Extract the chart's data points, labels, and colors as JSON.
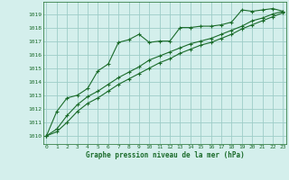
{
  "title": "Graphe pression niveau de la mer (hPa)",
  "bg_color": "#d4efec",
  "grid_color": "#9ecdc7",
  "line_color": "#1a6b2a",
  "x_ticks": [
    0,
    1,
    2,
    3,
    4,
    5,
    6,
    7,
    8,
    9,
    10,
    11,
    12,
    13,
    14,
    15,
    16,
    17,
    18,
    19,
    20,
    21,
    22,
    23
  ],
  "y_ticks": [
    1010,
    1011,
    1012,
    1013,
    1014,
    1015,
    1016,
    1017,
    1018,
    1019
  ],
  "ylim": [
    1009.4,
    1019.9
  ],
  "xlim": [
    -0.3,
    23.3
  ],
  "series1": [
    1010.0,
    1011.8,
    1012.8,
    1013.0,
    1013.5,
    1014.8,
    1015.3,
    1016.9,
    1017.1,
    1017.5,
    1016.9,
    1017.0,
    1017.0,
    1018.0,
    1018.0,
    1018.1,
    1018.1,
    1018.2,
    1018.4,
    1019.3,
    1019.2,
    1019.3,
    1019.4,
    1019.2
  ],
  "series2": [
    1010.0,
    1010.5,
    1011.5,
    1012.3,
    1012.9,
    1013.3,
    1013.8,
    1014.3,
    1014.7,
    1015.1,
    1015.6,
    1015.9,
    1016.2,
    1016.5,
    1016.8,
    1017.0,
    1017.2,
    1017.5,
    1017.8,
    1018.1,
    1018.5,
    1018.7,
    1019.0,
    1019.2
  ],
  "series3": [
    1010.0,
    1010.3,
    1011.0,
    1011.8,
    1012.4,
    1012.8,
    1013.3,
    1013.8,
    1014.2,
    1014.6,
    1015.0,
    1015.4,
    1015.7,
    1016.1,
    1016.4,
    1016.7,
    1016.9,
    1017.2,
    1017.5,
    1017.9,
    1018.2,
    1018.5,
    1018.8,
    1019.1
  ]
}
